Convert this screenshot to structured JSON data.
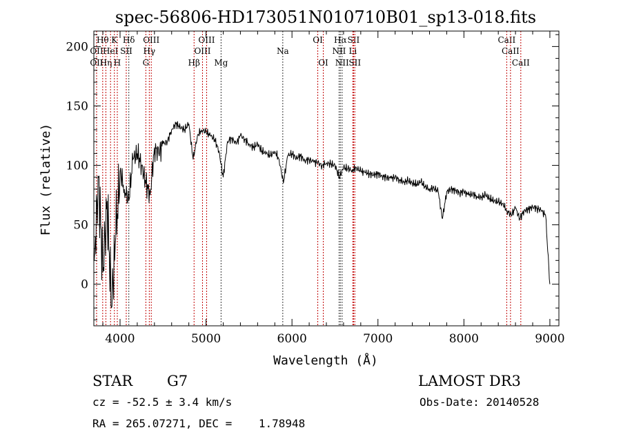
{
  "chart_data": {
    "type": "line",
    "title": "spec-56806-HD173051N010710B01_sp13-018.fits",
    "xlabel": "Wavelength (Å)",
    "ylabel": "Flux (relative)",
    "xlim": [
      3695,
      9105
    ],
    "ylim": [
      -35,
      213
    ],
    "xticks": [
      4000,
      5000,
      6000,
      7000,
      8000,
      9000
    ],
    "yticks": [
      0,
      50,
      100,
      150,
      200
    ],
    "grid": false,
    "series": [
      {
        "name": "spectrum",
        "x_start": 3700,
        "x_step": 50,
        "values": [
          20,
          90,
          10,
          70,
          -20,
          40,
          95,
          80,
          70,
          105,
          110,
          100,
          85,
          75,
          115,
          110,
          118,
          120,
          130,
          135,
          132,
          130,
          135,
          105,
          125,
          130,
          128,
          125,
          122,
          112,
          90,
          120,
          123,
          118,
          125,
          122,
          118,
          115,
          118,
          112,
          110,
          108,
          112,
          105,
          85,
          108,
          110,
          106,
          108,
          104,
          105,
          103,
          102,
          100,
          102,
          101,
          100,
          90,
          98,
          97,
          96,
          98,
          95,
          94,
          93,
          92,
          93,
          91,
          90,
          89,
          90,
          88,
          86,
          87,
          85,
          84,
          86,
          82,
          80,
          81,
          78,
          55,
          78,
          80,
          79,
          77,
          78,
          75,
          76,
          74,
          73,
          75,
          72,
          70,
          69,
          68,
          62,
          58,
          64,
          55,
          62,
          63,
          65,
          64,
          62,
          58,
          0
        ]
      }
    ],
    "lines": [
      {
        "label": "OII",
        "wl": 3727,
        "tier": 2,
        "color": "#c00000"
      },
      {
        "label": "OII",
        "wl": 3727,
        "tier": 3,
        "color": "#c00000"
      },
      {
        "label": "Hθ",
        "wl": 3798,
        "tier": 1,
        "color": "#c00000"
      },
      {
        "label": "Hη",
        "wl": 3835,
        "tier": 3,
        "color": "#c00000"
      },
      {
        "label": "HeI",
        "wl": 3889,
        "tier": 2,
        "color": "#c00000"
      },
      {
        "label": "K",
        "wl": 3934,
        "tier": 1,
        "color": "#c00000"
      },
      {
        "label": "H",
        "wl": 3968,
        "tier": 3,
        "color": "#c00000"
      },
      {
        "label": "SII",
        "wl": 4072,
        "tier": 2,
        "color": "#c00000"
      },
      {
        "label": "Hδ",
        "wl": 4102,
        "tier": 1,
        "color": "#333333"
      },
      {
        "label": "G",
        "wl": 4300,
        "tier": 3,
        "color": "#c00000"
      },
      {
        "label": "Hγ",
        "wl": 4340,
        "tier": 2,
        "color": "#c00000"
      },
      {
        "label": "OIII",
        "wl": 4363,
        "tier": 1,
        "color": "#c00000"
      },
      {
        "label": "Hβ",
        "wl": 4861,
        "tier": 3,
        "color": "#c00000"
      },
      {
        "label": "OIII",
        "wl": 4959,
        "tier": 2,
        "color": "#c00000"
      },
      {
        "label": "OIII",
        "wl": 5007,
        "tier": 1,
        "color": "#c00000"
      },
      {
        "label": "Mg",
        "wl": 5175,
        "tier": 3,
        "color": "#333333"
      },
      {
        "label": "Na",
        "wl": 5893,
        "tier": 2,
        "color": "#333333"
      },
      {
        "label": "OI",
        "wl": 6300,
        "tier": 1,
        "color": "#c00000"
      },
      {
        "label": "OI",
        "wl": 6364,
        "tier": 3,
        "color": "#c00000"
      },
      {
        "label": "NII",
        "wl": 6548,
        "tier": 2,
        "color": "#333333"
      },
      {
        "label": "Hα",
        "wl": 6563,
        "tier": 1,
        "color": "#333333"
      },
      {
        "label": "NII",
        "wl": 6583,
        "tier": 3,
        "color": "#333333"
      },
      {
        "label": "Li",
        "wl": 6708,
        "tier": 2,
        "color": "#c00000"
      },
      {
        "label": "SII",
        "wl": 6716,
        "tier": 1,
        "color": "#c00000"
      },
      {
        "label": "SII",
        "wl": 6731,
        "tier": 3,
        "color": "#c00000"
      },
      {
        "label": "CaII",
        "wl": 8498,
        "tier": 1,
        "color": "#c00000"
      },
      {
        "label": "CaII",
        "wl": 8542,
        "tier": 2,
        "color": "#c00000"
      },
      {
        "label": "CaII",
        "wl": 8662,
        "tier": 3,
        "color": "#c00000"
      }
    ]
  },
  "info": {
    "class": "STAR",
    "subclass": "G7",
    "cz": "cz = -52.5 ± 3.4 km/s",
    "coords": "RA = 265.07271, DEC =    1.78948",
    "survey": "LAMOST DR3",
    "obs_date": "Obs-Date: 20140528"
  }
}
